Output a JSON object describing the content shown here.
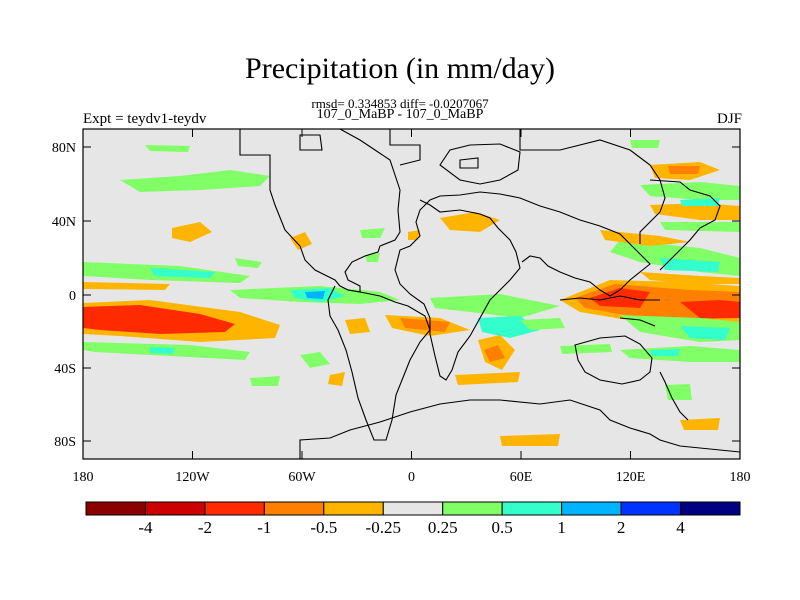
{
  "header": {
    "title": "Precipitation (in mm/day)",
    "stats": "rmsd= 0.334853 diff= -0.0207067",
    "cases": "107_0_MaBP - 107_0_MaBP",
    "expt": "Expt = teydv1-teydv",
    "season": "DJF"
  },
  "map": {
    "lat_ticks": [
      "80N",
      "40N",
      "0",
      "40S",
      "80S"
    ],
    "lon_ticks": [
      "180",
      "120W",
      "60W",
      "0",
      "60E",
      "120E",
      "180"
    ]
  },
  "colorbar": {
    "labels": [
      "-4",
      "-2",
      "-1",
      "-0.5",
      "-0.25",
      "0.25",
      "0.5",
      "1",
      "2",
      "4"
    ],
    "colors": [
      "#8b0000",
      "#cc0000",
      "#ff2a00",
      "#ff8000",
      "#ffb400",
      "#e6e6e6",
      "#80ff66",
      "#33ffcc",
      "#00b4ff",
      "#0033ff",
      "#000080"
    ]
  }
}
